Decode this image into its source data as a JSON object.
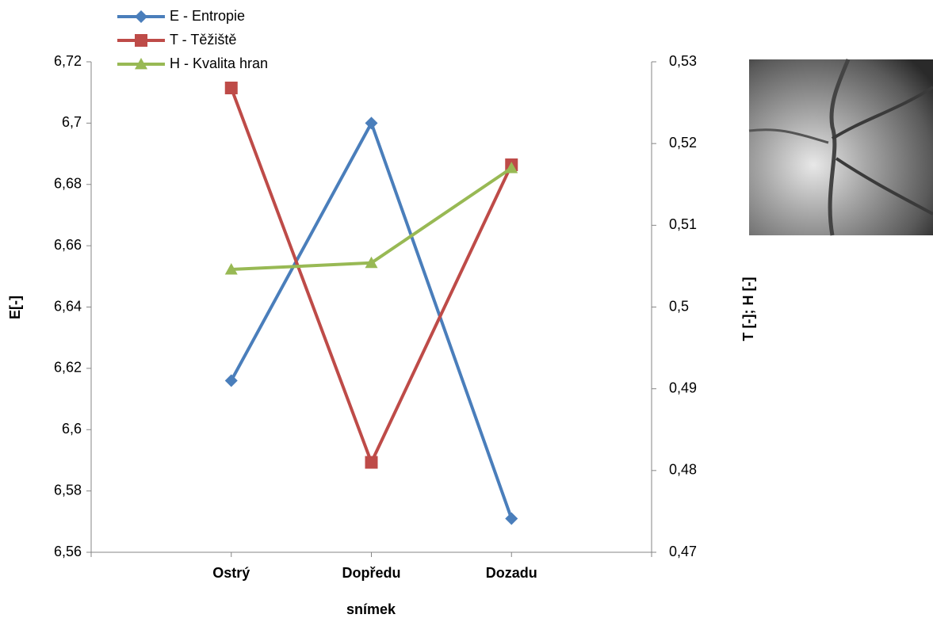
{
  "chart_data": {
    "type": "line",
    "categories": [
      null,
      "Ostrý",
      "Dopředu",
      "Dozadu",
      null
    ],
    "x_label": "snímek",
    "y_label": "E[-]",
    "y2_label": "T [-]; H [-]",
    "ylim": [
      6.56,
      6.72
    ],
    "yticks": [
      {
        "value": 6.56,
        "label": "6,56"
      },
      {
        "value": 6.58,
        "label": "6,58"
      },
      {
        "value": 6.6,
        "label": "6,6"
      },
      {
        "value": 6.62,
        "label": "6,62"
      },
      {
        "value": 6.64,
        "label": "6,64"
      },
      {
        "value": 6.66,
        "label": "6,66"
      },
      {
        "value": 6.68,
        "label": "6,68"
      },
      {
        "value": 6.7,
        "label": "6,7"
      },
      {
        "value": 6.72,
        "label": "6,72"
      }
    ],
    "y2lim": [
      0.47,
      0.53
    ],
    "y2ticks": [
      {
        "value": 0.47,
        "label": "0,47"
      },
      {
        "value": 0.48,
        "label": "0,48"
      },
      {
        "value": 0.49,
        "label": "0,49"
      },
      {
        "value": 0.5,
        "label": "0,5"
      },
      {
        "value": 0.51,
        "label": "0,51"
      },
      {
        "value": 0.52,
        "label": "0,52"
      },
      {
        "value": 0.53,
        "label": "0,53"
      }
    ],
    "grid": false,
    "series": [
      {
        "name": "E - Entropie",
        "color": "#4a7ebb",
        "marker": "diamond",
        "axis": "y",
        "values": [
          null,
          6.616,
          6.7,
          6.571,
          null
        ]
      },
      {
        "name": "T - Těžiště",
        "color": "#be4b48",
        "marker": "square",
        "axis": "y2",
        "values": [
          null,
          0.5268,
          0.481,
          0.5174,
          null
        ]
      },
      {
        "name": "H - Kvalita hran",
        "color": "#98b954",
        "marker": "triangle",
        "axis": "y2",
        "values": [
          null,
          0.5046,
          0.5054,
          0.517,
          null
        ]
      }
    ]
  }
}
